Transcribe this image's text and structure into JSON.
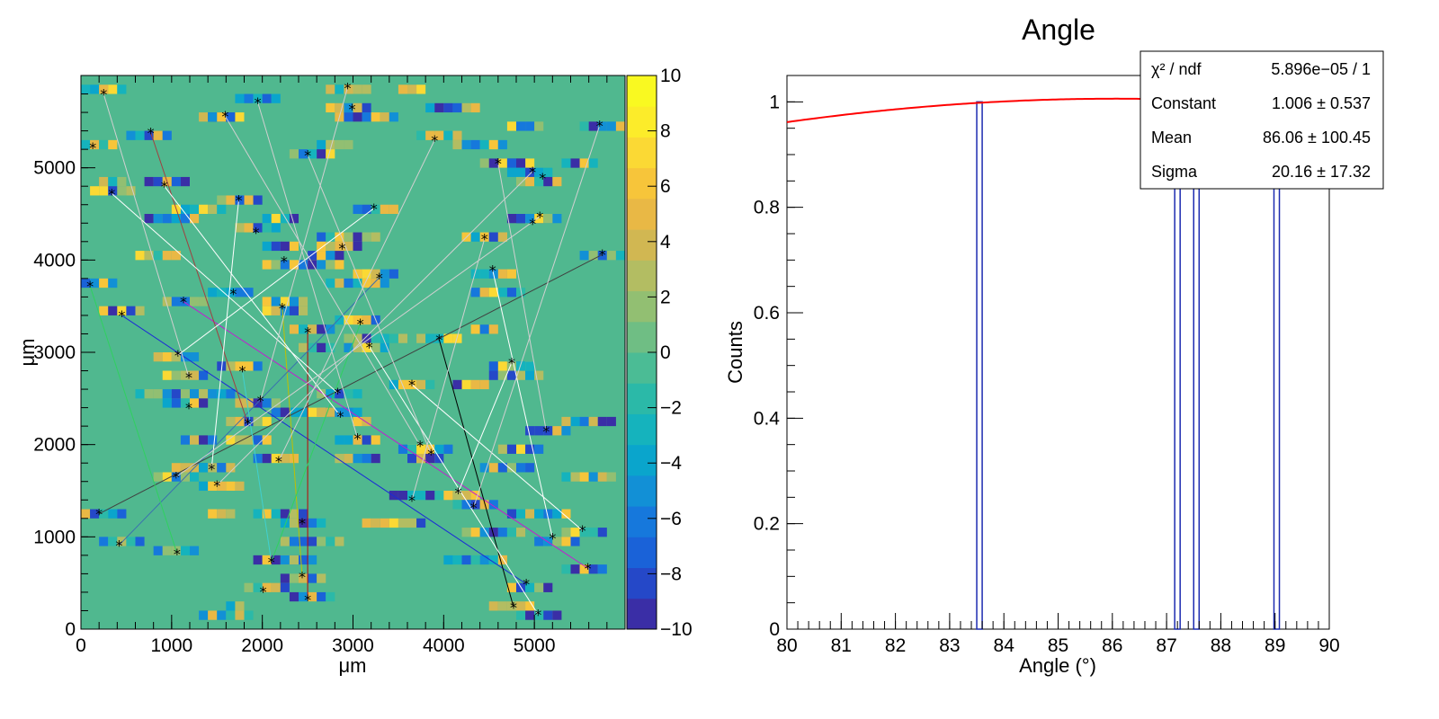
{
  "chart_data": [
    {
      "type": "heatmap",
      "title": "",
      "xlabel": "μm",
      "ylabel": "μm",
      "xlim": [
        0,
        6000
      ],
      "ylim": [
        0,
        6000
      ],
      "x_ticks": [
        "0",
        "1000",
        "2000",
        "3000",
        "4000",
        "5000"
      ],
      "y_ticks": [
        "0",
        "1000",
        "2000",
        "3000",
        "4000",
        "5000"
      ],
      "colorbar": {
        "range": [
          -10,
          10
        ],
        "ticks": [
          "10",
          "8",
          "6",
          "4",
          "2",
          "0",
          "−2",
          "−4",
          "−6",
          "−8",
          "−10"
        ],
        "palette": [
          "#3a2ea6",
          "#2548c8",
          "#1a62d8",
          "#1678dc",
          "#1290d6",
          "#0aa5cc",
          "#15b3bd",
          "#2bb9a8",
          "#4bbc95",
          "#6fbe84",
          "#92bf72",
          "#b3bd62",
          "#d1b752",
          "#e9b845",
          "#f7c53a",
          "#fbd934",
          "#fcec2a",
          "#f9f921"
        ],
        "background": "#50b88f"
      },
      "markers": [
        [
          250,
          5800
        ],
        [
          130,
          5220
        ],
        [
          340,
          4720
        ],
        [
          770,
          5380
        ],
        [
          920,
          4800
        ],
        [
          1590,
          5560
        ],
        [
          1950,
          5710
        ],
        [
          2940,
          5870
        ],
        [
          2990,
          5640
        ],
        [
          2500,
          5140
        ],
        [
          3900,
          5300
        ],
        [
          4600,
          5050
        ],
        [
          4980,
          4960
        ],
        [
          5090,
          4890
        ],
        [
          5060,
          4470
        ],
        [
          4980,
          4400
        ],
        [
          4450,
          4230
        ],
        [
          4540,
          3890
        ],
        [
          5750,
          4060
        ],
        [
          5720,
          5460
        ],
        [
          3230,
          4560
        ],
        [
          1740,
          4650
        ],
        [
          1930,
          4300
        ],
        [
          2240,
          3990
        ],
        [
          2880,
          4130
        ],
        [
          3290,
          3810
        ],
        [
          100,
          3720
        ],
        [
          1130,
          3550
        ],
        [
          1680,
          3640
        ],
        [
          2220,
          3480
        ],
        [
          2500,
          3220
        ],
        [
          3080,
          3310
        ],
        [
          3950,
          3140
        ],
        [
          450,
          3400
        ],
        [
          1070,
          2970
        ],
        [
          1190,
          2730
        ],
        [
          3180,
          3060
        ],
        [
          3650,
          2650
        ],
        [
          4750,
          2890
        ],
        [
          1780,
          2800
        ],
        [
          1980,
          2480
        ],
        [
          2830,
          2560
        ],
        [
          1190,
          2400
        ],
        [
          1840,
          2230
        ],
        [
          2860,
          2310
        ],
        [
          3050,
          2070
        ],
        [
          3740,
          1990
        ],
        [
          3860,
          1900
        ],
        [
          5130,
          2150
        ],
        [
          1440,
          1740
        ],
        [
          1050,
          1650
        ],
        [
          2180,
          1820
        ],
        [
          1500,
          1560
        ],
        [
          4160,
          1480
        ],
        [
          3650,
          1400
        ],
        [
          4330,
          1320
        ],
        [
          200,
          1250
        ],
        [
          2440,
          1150
        ],
        [
          420,
          910
        ],
        [
          1060,
          820
        ],
        [
          5200,
          990
        ],
        [
          5530,
          1070
        ],
        [
          5590,
          660
        ],
        [
          2100,
          730
        ],
        [
          2440,
          570
        ],
        [
          4910,
          490
        ],
        [
          2010,
          410
        ],
        [
          2500,
          320
        ],
        [
          4770,
          240
        ],
        [
          5040,
          160
        ]
      ],
      "tracks": [
        {
          "color": "#1c2bd6",
          "from": [
            450,
            3400
          ],
          "to": [
            4910,
            490
          ]
        },
        {
          "color": "#c020d0",
          "from": [
            1130,
            3550
          ],
          "to": [
            5590,
            660
          ]
        },
        {
          "color": "#000000",
          "from": [
            3950,
            3140
          ],
          "to": [
            4770,
            240
          ]
        },
        {
          "color": "#c0c000",
          "from": [
            2220,
            3480
          ],
          "to": [
            2440,
            570
          ]
        },
        {
          "color": "#c00000",
          "from": [
            2500,
            3220
          ],
          "to": [
            2500,
            320
          ]
        },
        {
          "color": "#3a70b0",
          "from": [
            420,
            910
          ],
          "to": [
            3290,
            3810
          ]
        },
        {
          "color": "#404040",
          "from": [
            200,
            1250
          ],
          "to": [
            5750,
            4060
          ]
        },
        {
          "color": "#30d060",
          "from": [
            100,
            3720
          ],
          "to": [
            1060,
            820
          ]
        },
        {
          "color": "#30d060",
          "from": [
            3080,
            3310
          ],
          "to": [
            2100,
            730
          ]
        },
        {
          "color": "#40d0d0",
          "from": [
            1780,
            2800
          ],
          "to": [
            2100,
            730
          ]
        },
        {
          "color": "#a04040",
          "from": [
            770,
            5380
          ],
          "to": [
            1840,
            2230
          ]
        },
        {
          "color": "#ffffff",
          "from": [
            1740,
            4650
          ],
          "to": [
            1440,
            1740
          ]
        },
        {
          "color": "#ffffff",
          "from": [
            4540,
            3890
          ],
          "to": [
            5200,
            990
          ]
        },
        {
          "color": "#ffffff",
          "from": [
            4750,
            2890
          ],
          "to": [
            4160,
            1480
          ]
        },
        {
          "color": "#ffffff",
          "from": [
            3180,
            3060
          ],
          "to": [
            5040,
            160
          ]
        },
        {
          "color": "#ffffff",
          "from": [
            340,
            4720
          ],
          "to": [
            2830,
            2560
          ]
        },
        {
          "color": "#ffffff",
          "from": [
            1070,
            2970
          ],
          "to": [
            3230,
            4560
          ]
        },
        {
          "color": "#ffffff",
          "from": [
            3650,
            2650
          ],
          "to": [
            5530,
            1070
          ]
        },
        {
          "color": "#ffffff",
          "from": [
            920,
            4800
          ],
          "to": [
            2860,
            2310
          ]
        },
        {
          "color": "#d0d0d0",
          "from": [
            5720,
            5460
          ],
          "to": [
            4330,
            1320
          ]
        },
        {
          "color": "#d0d0d0",
          "from": [
            1590,
            5560
          ],
          "to": [
            3740,
            1990
          ]
        },
        {
          "color": "#d0d0d0",
          "from": [
            2940,
            5870
          ],
          "to": [
            1980,
            2480
          ]
        },
        {
          "color": "#d0d0d0",
          "from": [
            4450,
            4230
          ],
          "to": [
            3650,
            1400
          ]
        },
        {
          "color": "#d0d0d0",
          "from": [
            5060,
            4470
          ],
          "to": [
            1050,
            1650
          ]
        },
        {
          "color": "#d0d0d0",
          "from": [
            3900,
            5300
          ],
          "to": [
            2180,
            1820
          ]
        },
        {
          "color": "#d0d0d0",
          "from": [
            4600,
            5050
          ],
          "to": [
            5130,
            2150
          ]
        },
        {
          "color": "#d0d0d0",
          "from": [
            2500,
            5140
          ],
          "to": [
            3860,
            1900
          ]
        },
        {
          "color": "#d0d0d0",
          "from": [
            250,
            5800
          ],
          "to": [
            1190,
            2730
          ]
        },
        {
          "color": "#d0d0d0",
          "from": [
            1950,
            5710
          ],
          "to": [
            3050,
            2070
          ]
        },
        {
          "color": "#d0d0d0",
          "from": [
            4980,
            4960
          ],
          "to": [
            1500,
            1560
          ]
        }
      ]
    },
    {
      "type": "bar",
      "title": "Angle",
      "xlabel": "Angle (°)",
      "ylabel": "Counts",
      "xlim": [
        80,
        90
      ],
      "ylim": [
        0,
        1.05
      ],
      "x_ticks": [
        "80",
        "81",
        "82",
        "83",
        "84",
        "85",
        "86",
        "87",
        "88",
        "89",
        "90"
      ],
      "y_ticks": [
        "0",
        "0.2",
        "0.4",
        "0.6",
        "0.8",
        "1"
      ],
      "bars": [
        {
          "x0": 83.5,
          "x1": 83.6,
          "value": 1
        },
        {
          "x0": 87.15,
          "x1": 87.25,
          "value": 1
        },
        {
          "x0": 87.5,
          "x1": 87.6,
          "value": 1
        },
        {
          "x0": 88.98,
          "x1": 89.08,
          "value": 1
        }
      ],
      "bar_color": "#1c2bb0",
      "fit": {
        "color": "#ff0000",
        "constant": 1.006,
        "mean": 86.06,
        "sigma": 20.16
      },
      "stats_box": [
        {
          "label": "χ² / ndf",
          "value": "5.896e−05 / 1"
        },
        {
          "label": "Constant",
          "value": "1.006 ± 0.537"
        },
        {
          "label": "Mean",
          "value": "86.06 ± 100.45"
        },
        {
          "label": "Sigma",
          "value": "20.16 ± 17.32"
        }
      ]
    }
  ]
}
